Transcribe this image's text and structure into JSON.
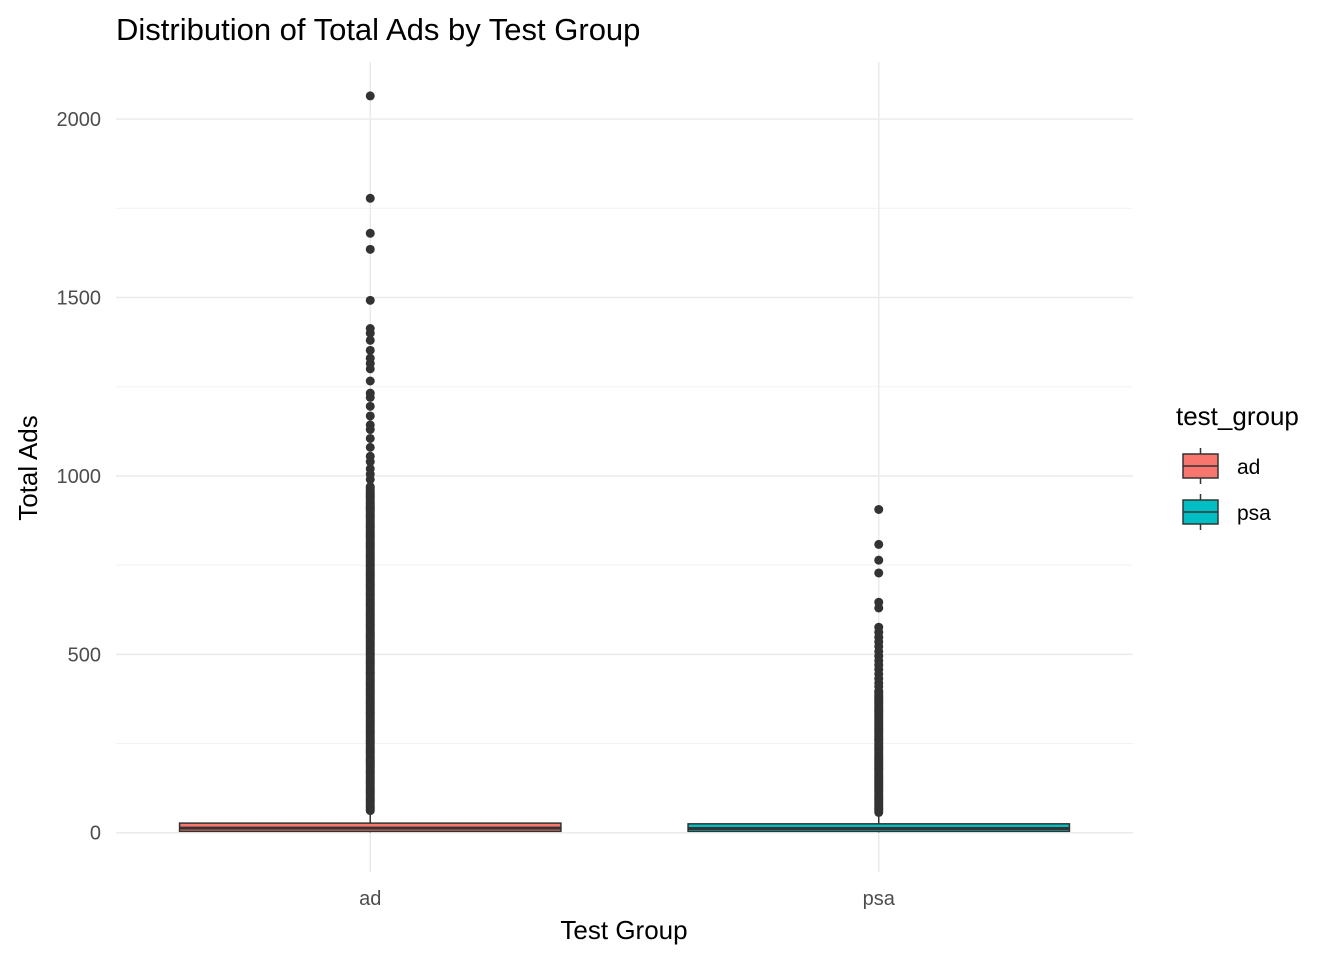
{
  "chart_data": {
    "type": "boxplot",
    "title": "Distribution of Total Ads by Test Group",
    "xlabel": "Test Group",
    "ylabel": "Total Ads",
    "categories": [
      "ad",
      "psa"
    ],
    "ylim": [
      -110,
      2160
    ],
    "yticks": [
      0,
      500,
      1000,
      1500,
      2000
    ],
    "grid": true,
    "legend": {
      "title": "test_group",
      "position": "right"
    },
    "series": [
      {
        "name": "ad",
        "color": "#F8766D",
        "box": {
          "min": 1,
          "q1": 4,
          "median": 13,
          "q3": 27,
          "max": 62
        },
        "outliers_dense_range": [
          62,
          970
        ],
        "outliers": [
          2065,
          1778,
          1680,
          1635,
          1492,
          1413,
          1400,
          1380,
          1352,
          1330,
          1315,
          1300,
          1266,
          1232,
          1220,
          1195,
          1168,
          1143,
          1130,
          1105,
          1080,
          1055,
          1040,
          1020,
          1005,
          990
        ]
      },
      {
        "name": "psa",
        "color": "#00BFC4",
        "box": {
          "min": 1,
          "q1": 4,
          "median": 12,
          "q3": 25,
          "max": 57
        },
        "outliers_dense_range": [
          57,
          400
        ],
        "outliers": [
          906,
          808,
          764,
          728,
          646,
          630,
          576,
          562,
          548,
          535,
          522,
          508,
          495,
          482,
          470,
          458,
          445,
          432,
          420,
          410
        ]
      }
    ]
  }
}
